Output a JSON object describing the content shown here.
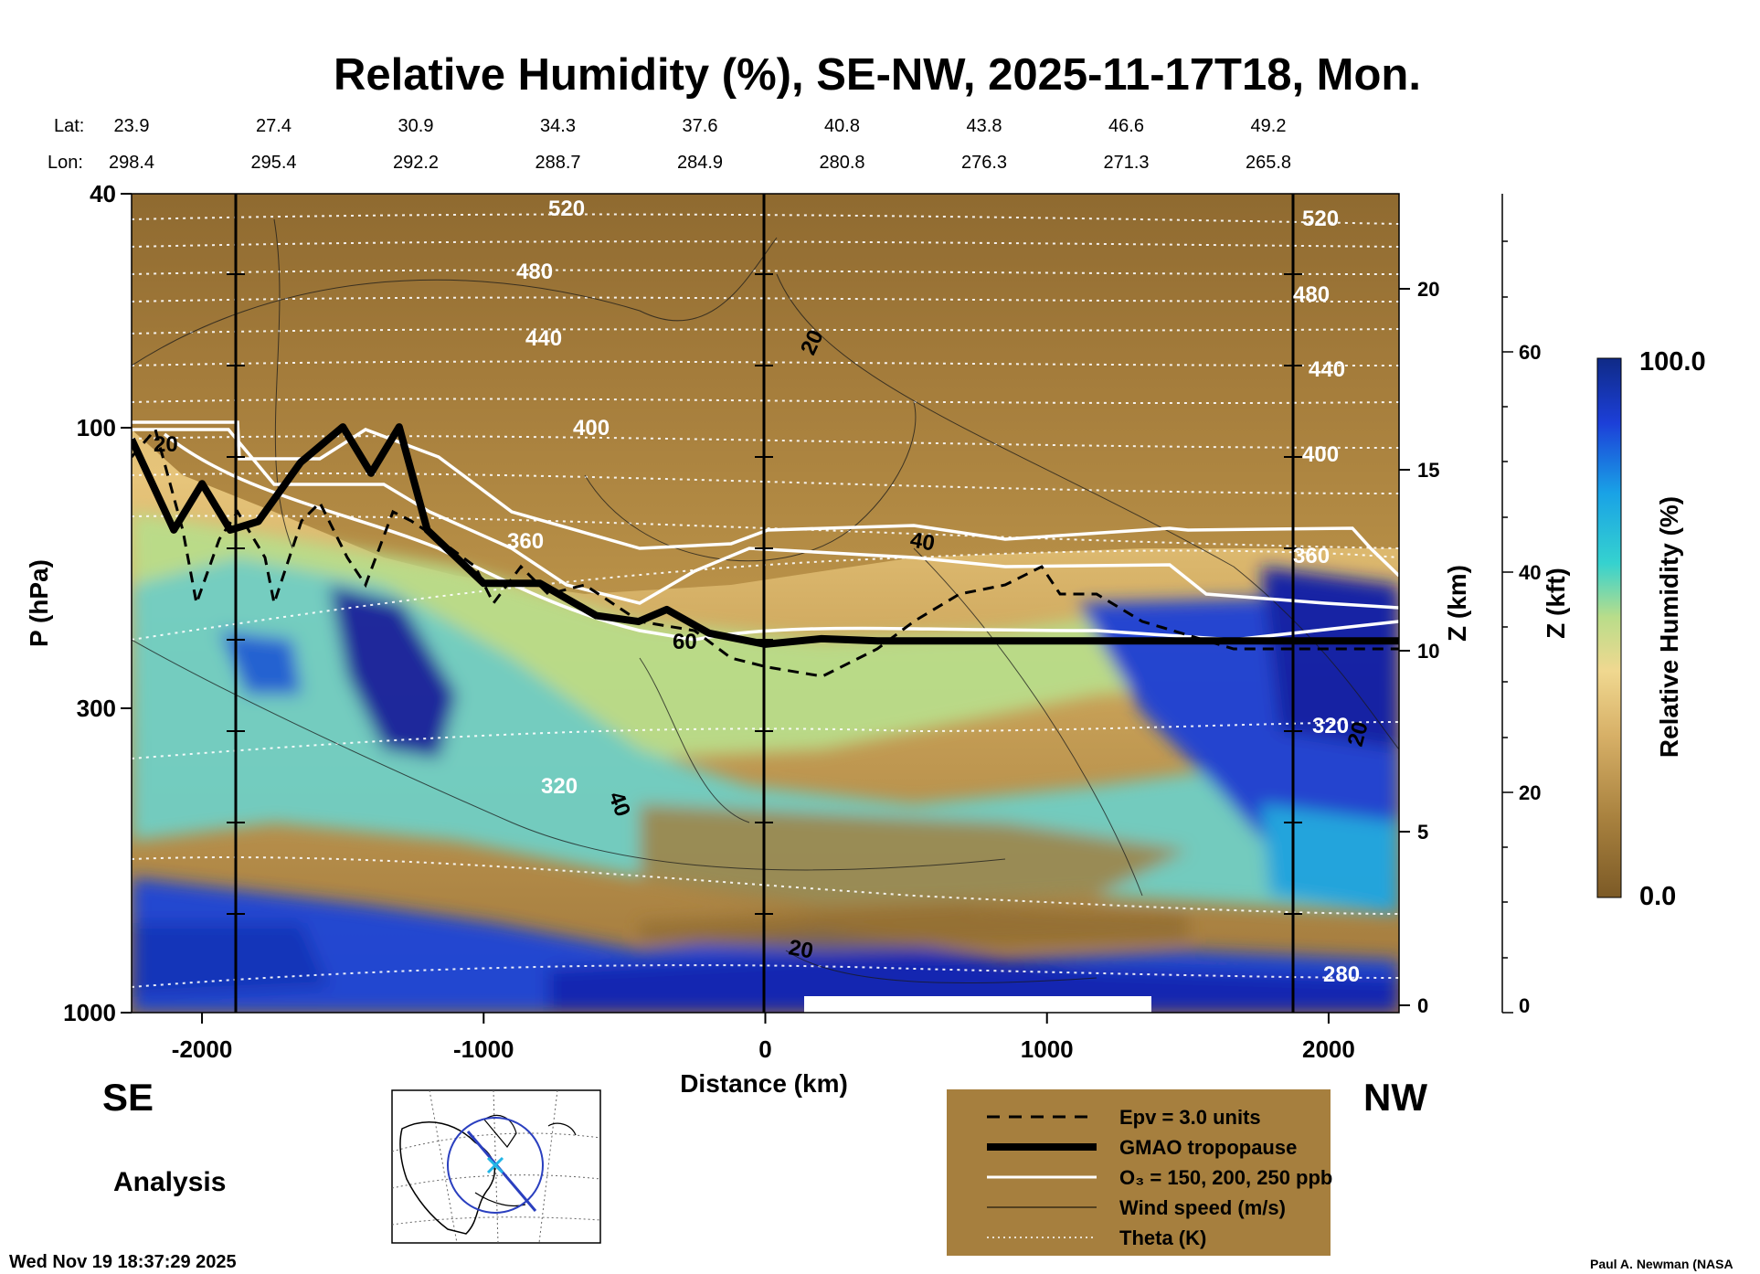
{
  "chart_data": {
    "type": "heatmap",
    "title": "Relative Humidity (%), SE-NW, 2025-11-17T18, Mon.",
    "xlabel": "Distance (km)",
    "ylabel": "P (hPa)",
    "y2label": "Z (km)",
    "y3label": "Z (kft)",
    "xlim": [
      -2250,
      2250
    ],
    "ylim": [
      1000,
      40
    ],
    "x_ticks": [
      -2000,
      -1000,
      0,
      1000,
      2000
    ],
    "x_tick_labels": [
      "-2000",
      "-1000",
      "0",
      "1000",
      "2000"
    ],
    "y_ticks": [
      40,
      100,
      300,
      1000
    ],
    "y_tick_labels": [
      "40",
      "100",
      "300",
      "1000"
    ],
    "z_km_ticks": [
      0,
      5,
      10,
      15,
      20
    ],
    "z_km_labels": [
      "0",
      "5",
      "10",
      "15",
      "20"
    ],
    "z_kft_ticks": [
      0,
      20,
      40,
      60
    ],
    "z_kft_labels": [
      "0",
      "20",
      "40",
      "60"
    ],
    "lat_label": "Lat:",
    "lon_label": "Lon:",
    "lat_values": [
      "23.9",
      "27.4",
      "30.9",
      "34.3",
      "37.6",
      "40.8",
      "43.8",
      "46.6",
      "49.2"
    ],
    "lon_values": [
      "298.4",
      "295.4",
      "292.2",
      "288.7",
      "284.9",
      "280.8",
      "276.3",
      "271.3",
      "265.8"
    ],
    "direction_left": "SE",
    "direction_right": "NW",
    "colorbar": {
      "label": "Relative Humidity (%)",
      "min": "0.0",
      "max": "100.0"
    },
    "theta_labels": [
      "520",
      "480",
      "440",
      "400",
      "360",
      "320",
      "280"
    ],
    "wind_labels": [
      "20",
      "40",
      "60"
    ],
    "tropopause_pressure_hPa": [
      [
        -2250,
        105
      ],
      [
        -2100,
        150
      ],
      [
        -2000,
        125
      ],
      [
        -1900,
        150
      ],
      [
        -1800,
        145
      ],
      [
        -1650,
        115
      ],
      [
        -1500,
        100
      ],
      [
        -1400,
        120
      ],
      [
        -1300,
        100
      ],
      [
        -1200,
        150
      ],
      [
        -1000,
        185
      ],
      [
        -800,
        185
      ],
      [
        -600,
        210
      ],
      [
        -450,
        215
      ],
      [
        -350,
        205
      ],
      [
        -200,
        225
      ],
      [
        0,
        235
      ],
      [
        200,
        230
      ],
      [
        400,
        232
      ],
      [
        2250,
        232
      ]
    ],
    "legend": [
      {
        "label": "Epv = 3.0 units",
        "style": "dashed-black"
      },
      {
        "label": "GMAO tropopause",
        "style": "thick-black"
      },
      {
        "label": "O₃ = 150, 200, 250 ppb",
        "style": "white"
      },
      {
        "label": "Wind speed (m/s)",
        "style": "thin-black"
      },
      {
        "label": "Theta (K)",
        "style": "dotted-white"
      }
    ]
  },
  "footer": {
    "subtitle": "Analysis",
    "timestamp": "Wed Nov 19 18:37:29 2025",
    "credit": "Paul A. Newman (NASA"
  },
  "colors": {
    "legend_bg": "#a67f3e",
    "dry": "#8a6428",
    "moist": "#1a1fbf"
  }
}
